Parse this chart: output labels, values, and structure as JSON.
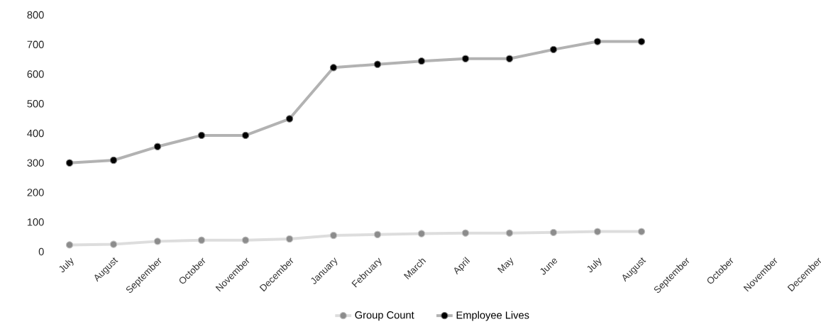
{
  "chart_data": {
    "type": "line",
    "categories": [
      "July",
      "August",
      "September",
      "October",
      "November",
      "December",
      "January",
      "February",
      "March",
      "April",
      "May",
      "June",
      "July",
      "August",
      "September",
      "October",
      "November",
      "December"
    ],
    "series": [
      {
        "name": "Group Count",
        "color": "#8c8c8c",
        "values": [
          23,
          25,
          35,
          39,
          39,
          43,
          55,
          58,
          61,
          63,
          63,
          65,
          68,
          68,
          null,
          null,
          null,
          null
        ]
      },
      {
        "name": "Employee Lives",
        "color": "#000000",
        "values": [
          300,
          309,
          355,
          393,
          393,
          449,
          622,
          633,
          644,
          652,
          652,
          683,
          710,
          710,
          null,
          null,
          null,
          null
        ]
      }
    ],
    "ylim": [
      0,
      800
    ],
    "yticks": [
      0,
      100,
      200,
      300,
      400,
      500,
      600,
      700,
      800
    ],
    "grid": false,
    "legend": "bottom",
    "marker": "circle",
    "line_style": "solid"
  }
}
